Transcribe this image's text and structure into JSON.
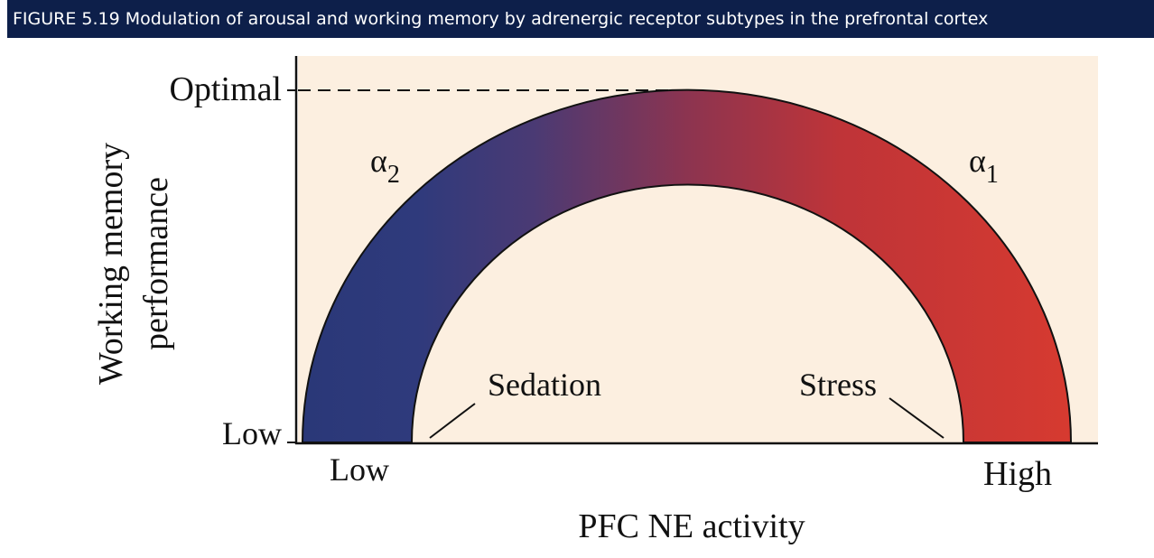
{
  "header": {
    "title": "FIGURE 5.19  Modulation of arousal and working memory by adrenergic receptor subtypes in the prefrontal cortex"
  },
  "figure": {
    "y_axis": {
      "label_lines": [
        "Working memory",
        "performance"
      ],
      "top": "Optimal",
      "bottom": "Low"
    },
    "x_axis": {
      "label": "PFC NE activity",
      "left": "Low",
      "right": "High"
    },
    "receptors": [
      {
        "symbol": "α",
        "subscript": "2"
      },
      {
        "symbol": "α",
        "subscript": "1"
      }
    ],
    "annotations": [
      "Sedation",
      "Stress"
    ]
  }
}
